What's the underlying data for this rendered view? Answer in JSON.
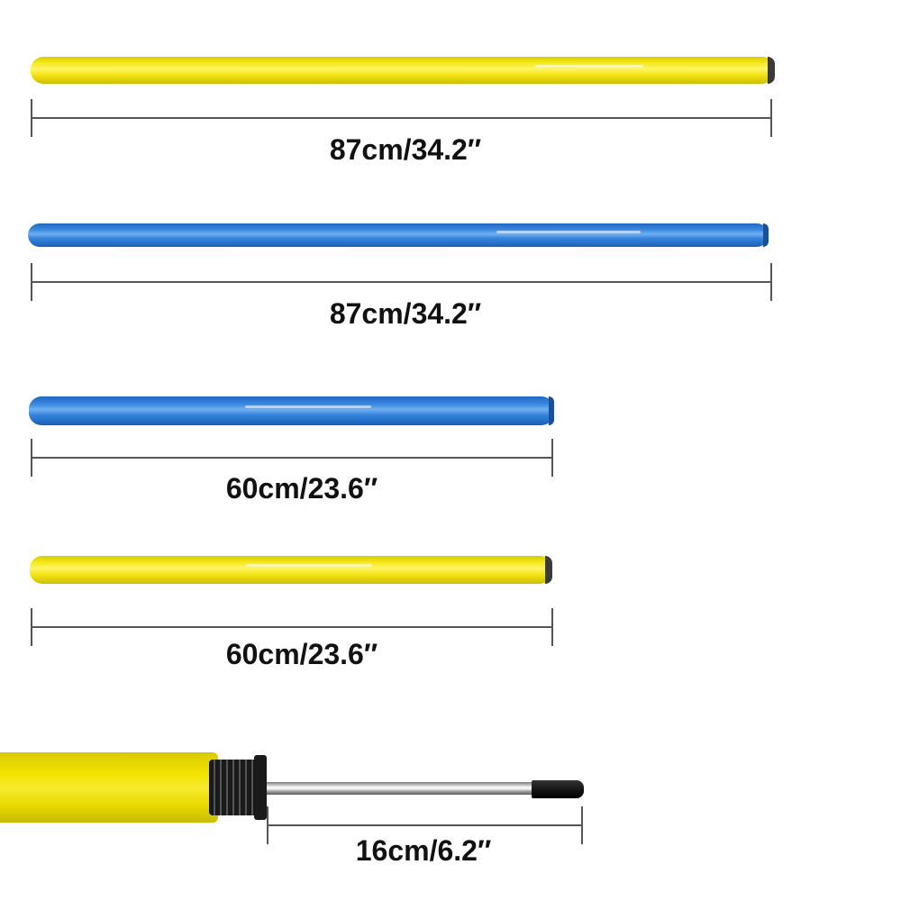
{
  "poles": [
    {
      "color": "yellow",
      "label": "87cm/34.2″"
    },
    {
      "color": "blue",
      "label": "87cm/34.2″"
    },
    {
      "color": "blue",
      "label": "60cm/23.6″"
    },
    {
      "color": "yellow",
      "label": "60cm/23.6″"
    }
  ],
  "spike": {
    "label": "16cm/6.2″"
  },
  "colors": {
    "yellow": "#f4e516",
    "blue": "#3583dc",
    "dimension_line": "#555555",
    "text": "#111111"
  }
}
